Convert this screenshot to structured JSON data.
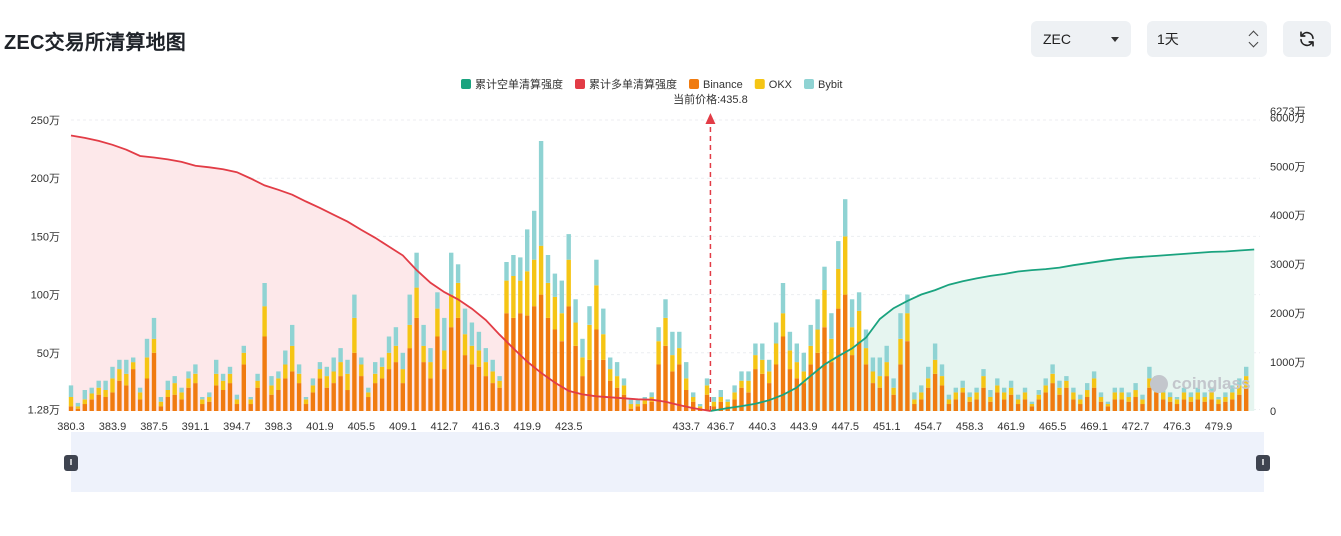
{
  "header": {
    "title": "ZEC交易所清算地图",
    "coin_select": "ZEC",
    "range_select": "1天",
    "refresh_icon": "refresh-icon"
  },
  "watermark": "coinglass",
  "colors": {
    "short_cum": "#1aa37f",
    "long_cum": "#e23c46",
    "binance": "#f07b10",
    "okx": "#f5c515",
    "bybit": "#8fd3d3",
    "short_fill": "#e6f5f0",
    "long_fill": "#fde8ea",
    "price_marker": "#e23c46"
  },
  "chart_data": {
    "type": "bar",
    "legend": [
      "累计空单清算强度",
      "累计多单清算强度",
      "Binance",
      "OKX",
      "Bybit"
    ],
    "current_price_label": "当前价格:435.8",
    "current_price": 435.8,
    "left_axis_ticks": [
      "1.28万",
      "50万",
      "100万",
      "150万",
      "200万",
      "250万"
    ],
    "left_axis_values": [
      1.28,
      50,
      100,
      150,
      200,
      250
    ],
    "right_axis_ticks": [
      "0",
      "1000万",
      "2000万",
      "3000万",
      "4000万",
      "5000万",
      "6000万",
      "6273万"
    ],
    "right_axis_values": [
      0,
      1000,
      2000,
      3000,
      4000,
      5000,
      6000,
      6273
    ],
    "x_tick_labels": [
      "380.3",
      "383.9",
      "387.5",
      "391.1",
      "394.7",
      "398.3",
      "401.9",
      "405.5",
      "409.1",
      "412.7",
      "416.3",
      "419.9",
      "423.5",
      "433.7",
      "436.7",
      "440.3",
      "443.9",
      "447.5",
      "451.1",
      "454.7",
      "458.3",
      "461.9",
      "465.5",
      "469.1",
      "472.7",
      "476.3",
      "479.9"
    ],
    "x_range": [
      380.3,
      483.5
    ],
    "bar_units": "万",
    "bars": [
      [
        380.3,
        4,
        8,
        10
      ],
      [
        380.9,
        2,
        2,
        3
      ],
      [
        381.5,
        6,
        4,
        8
      ],
      [
        382.1,
        10,
        5,
        5
      ],
      [
        382.7,
        14,
        6,
        6
      ],
      [
        383.3,
        12,
        6,
        8
      ],
      [
        383.9,
        16,
        12,
        10
      ],
      [
        384.5,
        26,
        10,
        8
      ],
      [
        385.1,
        22,
        10,
        12
      ],
      [
        385.7,
        36,
        6,
        4
      ],
      [
        386.3,
        10,
        6,
        4
      ],
      [
        386.9,
        28,
        18,
        16
      ],
      [
        387.5,
        50,
        12,
        18
      ],
      [
        388.1,
        4,
        4,
        4
      ],
      [
        388.7,
        12,
        6,
        8
      ],
      [
        389.3,
        14,
        10,
        6
      ],
      [
        389.9,
        10,
        6,
        4
      ],
      [
        390.5,
        20,
        8,
        6
      ],
      [
        391.1,
        24,
        8,
        8
      ],
      [
        391.7,
        6,
        4,
        2
      ],
      [
        392.3,
        8,
        4,
        4
      ],
      [
        392.9,
        22,
        10,
        12
      ],
      [
        393.5,
        18,
        8,
        6
      ],
      [
        394.1,
        24,
        8,
        6
      ],
      [
        394.7,
        6,
        4,
        4
      ],
      [
        395.3,
        40,
        10,
        6
      ],
      [
        395.9,
        6,
        4,
        2
      ],
      [
        396.5,
        20,
        6,
        6
      ],
      [
        397.1,
        64,
        26,
        20
      ],
      [
        397.7,
        14,
        8,
        8
      ],
      [
        398.3,
        18,
        10,
        6
      ],
      [
        398.9,
        28,
        12,
        12
      ],
      [
        399.5,
        34,
        22,
        18
      ],
      [
        400.1,
        24,
        8,
        8
      ],
      [
        400.7,
        6,
        4,
        2
      ],
      [
        401.3,
        16,
        6,
        6
      ],
      [
        401.9,
        28,
        8,
        6
      ],
      [
        402.5,
        20,
        10,
        8
      ],
      [
        403.1,
        24,
        10,
        12
      ],
      [
        403.7,
        30,
        12,
        12
      ],
      [
        404.3,
        18,
        14,
        12
      ],
      [
        404.9,
        50,
        30,
        20
      ],
      [
        405.5,
        30,
        10,
        6
      ],
      [
        406.1,
        12,
        4,
        4
      ],
      [
        406.7,
        24,
        8,
        10
      ],
      [
        407.3,
        28,
        10,
        8
      ],
      [
        407.9,
        36,
        14,
        14
      ],
      [
        408.5,
        42,
        14,
        16
      ],
      [
        409.1,
        24,
        12,
        14
      ],
      [
        409.7,
        54,
        20,
        26
      ],
      [
        410.3,
        80,
        26,
        30
      ],
      [
        410.9,
        42,
        14,
        18
      ],
      [
        411.5,
        28,
        14,
        12
      ],
      [
        412.1,
        64,
        24,
        14
      ],
      [
        412.7,
        36,
        16,
        28
      ],
      [
        413.3,
        72,
        28,
        36
      ],
      [
        413.9,
        80,
        30,
        16
      ],
      [
        414.5,
        48,
        18,
        22
      ],
      [
        415.1,
        40,
        16,
        20
      ],
      [
        415.7,
        38,
        14,
        16
      ],
      [
        416.3,
        30,
        12,
        12
      ],
      [
        416.9,
        24,
        10,
        10
      ],
      [
        417.5,
        20,
        6,
        4
      ],
      [
        418.1,
        84,
        28,
        16
      ],
      [
        418.7,
        80,
        36,
        18
      ],
      [
        419.3,
        84,
        28,
        20
      ],
      [
        419.9,
        82,
        38,
        36
      ],
      [
        420.5,
        90,
        40,
        42
      ],
      [
        421.1,
        100,
        42,
        90
      ],
      [
        421.7,
        80,
        30,
        24
      ],
      [
        422.3,
        70,
        28,
        20
      ],
      [
        422.9,
        60,
        24,
        28
      ],
      [
        423.5,
        90,
        40,
        22
      ],
      [
        424.1,
        56,
        20,
        20
      ],
      [
        424.7,
        30,
        16,
        16
      ],
      [
        425.3,
        44,
        30,
        16
      ],
      [
        425.9,
        70,
        38,
        22
      ],
      [
        426.5,
        44,
        22,
        22
      ],
      [
        427.1,
        26,
        10,
        10
      ],
      [
        427.7,
        20,
        10,
        12
      ],
      [
        428.3,
        14,
        8,
        6
      ],
      [
        428.9,
        2,
        4,
        4
      ],
      [
        429.5,
        4,
        2,
        4
      ],
      [
        430.1,
        6,
        4,
        2
      ],
      [
        430.7,
        8,
        4,
        4
      ],
      [
        431.3,
        40,
        20,
        12
      ],
      [
        431.9,
        56,
        24,
        16
      ],
      [
        432.5,
        34,
        14,
        20
      ],
      [
        433.1,
        40,
        14,
        14
      ],
      [
        433.7,
        18,
        10,
        14
      ],
      [
        434.3,
        8,
        4,
        4
      ],
      [
        434.9,
        2,
        2,
        2
      ],
      [
        435.5,
        14,
        8,
        6
      ],
      [
        436.1,
        4,
        4,
        4
      ],
      [
        436.7,
        8,
        4,
        6
      ],
      [
        437.3,
        4,
        4,
        2
      ],
      [
        437.9,
        10,
        6,
        6
      ],
      [
        438.5,
        20,
        6,
        8
      ],
      [
        439.1,
        16,
        10,
        8
      ],
      [
        439.7,
        36,
        12,
        10
      ],
      [
        440.3,
        32,
        12,
        14
      ],
      [
        440.9,
        24,
        10,
        10
      ],
      [
        441.5,
        40,
        18,
        18
      ],
      [
        442.1,
        64,
        20,
        26
      ],
      [
        442.7,
        36,
        16,
        16
      ],
      [
        443.3,
        28,
        14,
        16
      ],
      [
        443.9,
        24,
        10,
        16
      ],
      [
        444.5,
        40,
        16,
        18
      ],
      [
        445.1,
        50,
        20,
        26
      ],
      [
        445.7,
        72,
        32,
        20
      ],
      [
        446.3,
        42,
        20,
        22
      ],
      [
        446.9,
        88,
        34,
        24
      ],
      [
        447.5,
        100,
        50,
        32
      ],
      [
        448.1,
        48,
        24,
        24
      ],
      [
        448.7,
        60,
        26,
        16
      ],
      [
        449.3,
        40,
        14,
        16
      ],
      [
        449.9,
        24,
        10,
        12
      ],
      [
        450.5,
        20,
        10,
        16
      ],
      [
        451.1,
        30,
        12,
        14
      ],
      [
        451.7,
        14,
        6,
        8
      ],
      [
        452.3,
        40,
        22,
        22
      ],
      [
        452.9,
        60,
        24,
        16
      ],
      [
        453.5,
        6,
        4,
        6
      ],
      [
        454.1,
        10,
        6,
        6
      ],
      [
        454.7,
        20,
        8,
        10
      ],
      [
        455.3,
        32,
        12,
        14
      ],
      [
        455.9,
        22,
        8,
        10
      ],
      [
        456.5,
        6,
        4,
        4
      ],
      [
        457.1,
        10,
        6,
        4
      ],
      [
        457.7,
        16,
        4,
        6
      ],
      [
        458.3,
        8,
        4,
        4
      ],
      [
        458.9,
        10,
        6,
        4
      ],
      [
        459.5,
        20,
        10,
        6
      ],
      [
        460.1,
        8,
        4,
        6
      ],
      [
        460.7,
        16,
        6,
        6
      ],
      [
        461.3,
        10,
        6,
        4
      ],
      [
        461.9,
        14,
        6,
        6
      ],
      [
        462.5,
        6,
        4,
        4
      ],
      [
        463.1,
        10,
        6,
        4
      ],
      [
        463.7,
        4,
        2,
        2
      ],
      [
        464.3,
        10,
        4,
        4
      ],
      [
        464.9,
        16,
        6,
        6
      ],
      [
        465.5,
        24,
        8,
        8
      ],
      [
        466.1,
        14,
        6,
        6
      ],
      [
        466.7,
        20,
        6,
        4
      ],
      [
        467.3,
        10,
        6,
        4
      ],
      [
        467.9,
        6,
        4,
        4
      ],
      [
        468.5,
        12,
        6,
        6
      ],
      [
        469.1,
        20,
        8,
        6
      ],
      [
        469.7,
        8,
        4,
        4
      ],
      [
        470.3,
        4,
        2,
        2
      ],
      [
        470.9,
        10,
        6,
        4
      ],
      [
        471.5,
        10,
        6,
        4
      ],
      [
        472.1,
        8,
        4,
        4
      ],
      [
        472.7,
        12,
        6,
        6
      ],
      [
        473.3,
        6,
        4,
        4
      ],
      [
        473.9,
        20,
        8,
        10
      ],
      [
        474.5,
        16,
        8,
        6
      ],
      [
        475.1,
        10,
        6,
        4
      ],
      [
        475.7,
        8,
        4,
        4
      ],
      [
        476.3,
        6,
        4,
        2
      ],
      [
        476.9,
        10,
        6,
        4
      ],
      [
        477.5,
        8,
        4,
        4
      ],
      [
        478.1,
        10,
        6,
        4
      ],
      [
        478.7,
        8,
        4,
        4
      ],
      [
        479.3,
        10,
        6,
        4
      ],
      [
        479.9,
        6,
        4,
        2
      ],
      [
        480.5,
        8,
        4,
        4
      ],
      [
        481.1,
        10,
        6,
        6
      ],
      [
        481.7,
        14,
        8,
        6
      ],
      [
        482.3,
        20,
        10,
        8
      ]
    ],
    "long_cumulative": [
      [
        380.3,
        5630
      ],
      [
        381.5,
        5580
      ],
      [
        382.7,
        5520
      ],
      [
        383.9,
        5440
      ],
      [
        385.1,
        5340
      ],
      [
        386.3,
        5210
      ],
      [
        387.5,
        5180
      ],
      [
        388.7,
        5140
      ],
      [
        389.9,
        5090
      ],
      [
        391.1,
        5010
      ],
      [
        392.3,
        4980
      ],
      [
        393.5,
        4940
      ],
      [
        394.7,
        4880
      ],
      [
        395.9,
        4750
      ],
      [
        397.1,
        4610
      ],
      [
        398.3,
        4520
      ],
      [
        399.5,
        4420
      ],
      [
        400.7,
        4280
      ],
      [
        401.9,
        4150
      ],
      [
        403.1,
        4010
      ],
      [
        404.3,
        3870
      ],
      [
        405.5,
        3700
      ],
      [
        406.7,
        3540
      ],
      [
        407.9,
        3360
      ],
      [
        409.1,
        3180
      ],
      [
        410.3,
        2880
      ],
      [
        411.5,
        2620
      ],
      [
        412.7,
        2430
      ],
      [
        413.9,
        2280
      ],
      [
        415.1,
        2090
      ],
      [
        416.3,
        1860
      ],
      [
        417.5,
        1560
      ],
      [
        418.7,
        1280
      ],
      [
        419.9,
        1010
      ],
      [
        421.1,
        780
      ],
      [
        422.3,
        580
      ],
      [
        423.5,
        410
      ],
      [
        424.7,
        340
      ],
      [
        425.9,
        300
      ],
      [
        427.1,
        280
      ],
      [
        428.3,
        260
      ],
      [
        429.5,
        240
      ],
      [
        430.7,
        230
      ],
      [
        431.9,
        190
      ],
      [
        433.1,
        120
      ],
      [
        434.3,
        60
      ],
      [
        435.8,
        0
      ]
    ],
    "short_cumulative": [
      [
        435.8,
        0
      ],
      [
        437.3,
        60
      ],
      [
        438.5,
        100
      ],
      [
        439.7,
        150
      ],
      [
        440.9,
        220
      ],
      [
        442.1,
        330
      ],
      [
        443.3,
        480
      ],
      [
        444.5,
        720
      ],
      [
        445.7,
        950
      ],
      [
        446.9,
        1120
      ],
      [
        448.1,
        1280
      ],
      [
        449.3,
        1500
      ],
      [
        450.5,
        1880
      ],
      [
        451.7,
        2100
      ],
      [
        452.9,
        2250
      ],
      [
        454.1,
        2380
      ],
      [
        455.3,
        2470
      ],
      [
        456.5,
        2580
      ],
      [
        457.7,
        2650
      ],
      [
        458.9,
        2710
      ],
      [
        460.1,
        2760
      ],
      [
        461.3,
        2800
      ],
      [
        462.5,
        2850
      ],
      [
        463.7,
        2880
      ],
      [
        464.9,
        2900
      ],
      [
        466.1,
        2930
      ],
      [
        467.3,
        2980
      ],
      [
        468.5,
        3020
      ],
      [
        469.7,
        3060
      ],
      [
        470.9,
        3100
      ],
      [
        472.1,
        3130
      ],
      [
        473.3,
        3150
      ],
      [
        474.5,
        3170
      ],
      [
        475.7,
        3190
      ],
      [
        476.9,
        3210
      ],
      [
        478.1,
        3230
      ],
      [
        479.3,
        3250
      ],
      [
        480.5,
        3260
      ],
      [
        481.7,
        3280
      ],
      [
        483.0,
        3300
      ]
    ]
  }
}
